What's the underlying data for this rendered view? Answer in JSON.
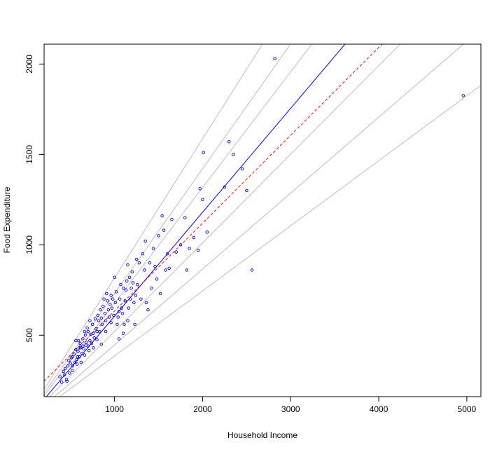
{
  "chart_data": {
    "type": "scatter",
    "title": "",
    "xlabel": "Household Income",
    "ylabel": "Food Expenditure",
    "xlim": [
      200,
      5160
    ],
    "ylim": [
      160,
      2110
    ],
    "x_ticks": [
      1000,
      2000,
      3000,
      4000,
      5000
    ],
    "y_ticks": [
      500,
      1000,
      1500,
      2000
    ],
    "grid": false,
    "legend": "none",
    "colors": {
      "points": "#0000ff",
      "median_fit": "#0000ff",
      "mean_fit": "#ff0000",
      "quantile_fits": "#bebebe",
      "axes": "#000000"
    },
    "lines": [
      {
        "style": "solid",
        "color": "#bebebe",
        "intercept": 47,
        "slope": 0.77
      },
      {
        "style": "solid",
        "color": "#bebebe",
        "intercept": 41,
        "slope": 0.69
      },
      {
        "style": "solid",
        "color": "#bebebe",
        "intercept": 37,
        "slope": 0.64
      },
      {
        "style": "solid",
        "color": "#0000ff",
        "intercept": 30,
        "slope": 0.575
      },
      {
        "style": "dashed",
        "color": "#ff0000",
        "intercept": 148,
        "slope": 0.486
      },
      {
        "style": "solid",
        "color": "#bebebe",
        "intercept": 31,
        "slope": 0.49
      },
      {
        "style": "solid",
        "color": "#bebebe",
        "intercept": 26,
        "slope": 0.42
      },
      {
        "style": "solid",
        "color": "#bebebe",
        "intercept": 25,
        "slope": 0.36
      }
    ],
    "points": [
      [
        420,
        300
      ],
      [
        455,
        255
      ],
      [
        460,
        245
      ],
      [
        470,
        330
      ],
      [
        480,
        360
      ],
      [
        490,
        290
      ],
      [
        500,
        345
      ],
      [
        510,
        375
      ],
      [
        520,
        305
      ],
      [
        525,
        330
      ],
      [
        540,
        395
      ],
      [
        550,
        350
      ],
      [
        560,
        420
      ],
      [
        570,
        365
      ],
      [
        575,
        340
      ],
      [
        585,
        410
      ],
      [
        590,
        470
      ],
      [
        600,
        380
      ],
      [
        610,
        455
      ],
      [
        615,
        430
      ],
      [
        620,
        350
      ],
      [
        630,
        400
      ],
      [
        640,
        480
      ],
      [
        650,
        425
      ],
      [
        660,
        390
      ],
      [
        670,
        500
      ],
      [
        675,
        445
      ],
      [
        680,
        460
      ],
      [
        690,
        540
      ],
      [
        700,
        520
      ],
      [
        710,
        415
      ],
      [
        720,
        470
      ],
      [
        730,
        505
      ],
      [
        740,
        455
      ],
      [
        750,
        560
      ],
      [
        760,
        510
      ],
      [
        770,
        485
      ],
      [
        780,
        590
      ],
      [
        790,
        535
      ],
      [
        800,
        475
      ],
      [
        810,
        610
      ],
      [
        820,
        580
      ],
      [
        830,
        520
      ],
      [
        840,
        640
      ],
      [
        850,
        595
      ],
      [
        860,
        560
      ],
      [
        870,
        660
      ],
      [
        880,
        700
      ],
      [
        890,
        620
      ],
      [
        900,
        580
      ],
      [
        910,
        730
      ],
      [
        920,
        690
      ],
      [
        930,
        640
      ],
      [
        940,
        600
      ],
      [
        950,
        670
      ],
      [
        960,
        720
      ],
      [
        970,
        650
      ],
      [
        980,
        700
      ],
      [
        990,
        610
      ],
      [
        1000,
        820
      ],
      [
        1010,
        680
      ],
      [
        1020,
        740
      ],
      [
        1030,
        560
      ],
      [
        1040,
        600
      ],
      [
        1050,
        630
      ],
      [
        1060,
        700
      ],
      [
        1070,
        780
      ],
      [
        1080,
        650
      ],
      [
        1090,
        620
      ],
      [
        1100,
        510
      ],
      [
        1110,
        560
      ],
      [
        1120,
        690
      ],
      [
        1130,
        750
      ],
      [
        1140,
        800
      ],
      [
        1150,
        580
      ],
      [
        1160,
        650
      ],
      [
        1170,
        820
      ],
      [
        1180,
        700
      ],
      [
        1190,
        760
      ],
      [
        1200,
        850
      ],
      [
        1210,
        790
      ],
      [
        1220,
        680
      ],
      [
        1230,
        560
      ],
      [
        1240,
        720
      ],
      [
        1250,
        920
      ],
      [
        1260,
        780
      ],
      [
        1280,
        900
      ],
      [
        1300,
        700
      ],
      [
        1320,
        950
      ],
      [
        1340,
        860
      ],
      [
        1350,
        1020
      ],
      [
        1360,
        680
      ],
      [
        1380,
        640
      ],
      [
        1400,
        900
      ],
      [
        1420,
        760
      ],
      [
        1440,
        980
      ],
      [
        1460,
        880
      ],
      [
        1480,
        810
      ],
      [
        1500,
        1050
      ],
      [
        1520,
        730
      ],
      [
        1540,
        1160
      ],
      [
        1560,
        1080
      ],
      [
        1580,
        860
      ],
      [
        1600,
        950
      ],
      [
        1620,
        870
      ],
      [
        1650,
        1140
      ],
      [
        1700,
        960
      ],
      [
        1750,
        1000
      ],
      [
        1800,
        1150
      ],
      [
        1820,
        860
      ],
      [
        1850,
        980
      ],
      [
        1900,
        1040
      ],
      [
        1950,
        970
      ],
      [
        1970,
        1310
      ],
      [
        2000,
        1250
      ],
      [
        2010,
        1510
      ],
      [
        2050,
        1070
      ],
      [
        2250,
        1320
      ],
      [
        2300,
        1570
      ],
      [
        2350,
        1500
      ],
      [
        2450,
        1420
      ],
      [
        2500,
        1300
      ],
      [
        2560,
        860
      ],
      [
        2820,
        2030
      ],
      [
        4960,
        1825
      ],
      [
        380,
        270
      ],
      [
        400,
        240
      ],
      [
        430,
        280
      ],
      [
        440,
        315
      ],
      [
        520,
        380
      ],
      [
        560,
        470
      ],
      [
        580,
        380
      ],
      [
        600,
        430
      ],
      [
        640,
        440
      ],
      [
        660,
        520
      ],
      [
        700,
        440
      ],
      [
        720,
        580
      ],
      [
        760,
        430
      ],
      [
        800,
        520
      ],
      [
        850,
        450
      ],
      [
        900,
        520
      ],
      [
        960,
        570
      ],
      [
        1050,
        480
      ],
      [
        1100,
        760
      ],
      [
        1150,
        890
      ]
    ]
  },
  "annotations": {
    "x_axis_title": "Household Income",
    "y_axis_title": "Food Expenditure"
  }
}
